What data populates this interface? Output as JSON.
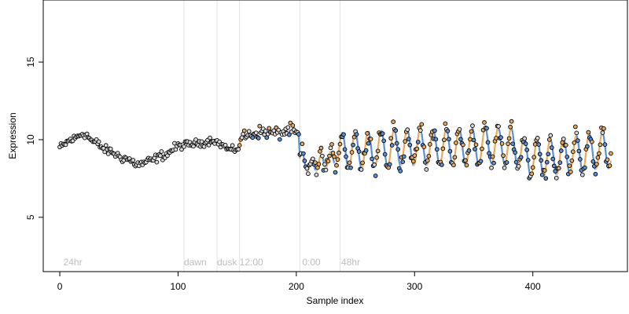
{
  "chart_data": {
    "type": "scatter",
    "title": "",
    "xlabel": "Sample index",
    "ylabel": "Expression",
    "xlim": [
      -14,
      480
    ],
    "ylim": [
      1.5,
      19
    ],
    "xticks": [
      0,
      100,
      200,
      300,
      400
    ],
    "yticks": [
      5,
      10,
      15
    ],
    "grid": false,
    "legend": "none",
    "annotations": [
      {
        "label": "24hr",
        "x": 3
      },
      {
        "label": "dawn",
        "x": 105
      },
      {
        "label": "dusk",
        "x": 133
      },
      {
        "label": "12:00",
        "x": 152
      },
      {
        "label": "0:00",
        "x": 205
      },
      {
        "label": "48hr",
        "x": 238
      }
    ],
    "vlines": [
      105,
      133,
      152,
      203,
      237
    ],
    "n_points": 467,
    "colors": {
      "high": "#e8a95a",
      "low": "#5b8fd6",
      "line": "#c8c8c8",
      "point_fill": "#d8d8d8",
      "point_edge": "#000000",
      "vline": "#e2e2e2",
      "annotation": "#bdbdbd"
    },
    "segments": [
      {
        "x_start": 0,
        "x_end": 99,
        "profile": "smooth",
        "knots": [
          [
            0,
            9.5
          ],
          [
            10,
            10.0
          ],
          [
            20,
            10.4
          ],
          [
            30,
            9.8
          ],
          [
            40,
            9.3
          ],
          [
            55,
            8.8
          ],
          [
            67,
            8.4
          ],
          [
            75,
            8.6
          ],
          [
            88,
            9.0
          ],
          [
            99,
            9.5
          ]
        ],
        "amplitude": 0,
        "period": 1,
        "noise": 0.18
      },
      {
        "x_start": 100,
        "x_end": 152,
        "profile": "smooth",
        "knots": [
          [
            100,
            9.6
          ],
          [
            110,
            9.7
          ],
          [
            120,
            9.8
          ],
          [
            130,
            10.0
          ],
          [
            136,
            9.7
          ],
          [
            145,
            9.3
          ],
          [
            152,
            9.5
          ]
        ],
        "amplitude": 0,
        "period": 1,
        "noise": 0.15
      },
      {
        "x_start": 153,
        "x_end": 202,
        "profile": "smooth",
        "knots": [
          [
            153,
            10.2
          ],
          [
            170,
            10.5
          ],
          [
            185,
            10.4
          ],
          [
            195,
            10.6
          ],
          [
            202,
            10.3
          ]
        ],
        "amplitude": 0,
        "period": 1,
        "noise": 0.25
      },
      {
        "x_start": 203,
        "x_end": 235,
        "profile": "smooth",
        "knots": [
          [
            203,
            8.8
          ],
          [
            212,
            8.3
          ],
          [
            222,
            8.6
          ],
          [
            235,
            8.9
          ]
        ],
        "amplitude": 0.5,
        "period": 8,
        "noise": 0.3
      },
      {
        "x_start": 236,
        "x_end": 466,
        "profile": "oscillating",
        "knots": [
          [
            236,
            9.3
          ],
          [
            300,
            9.5
          ],
          [
            380,
            9.6
          ],
          [
            400,
            8.8
          ],
          [
            466,
            9.3
          ]
        ],
        "amplitude": 1.2,
        "period": 11,
        "noise": 0.35
      }
    ]
  }
}
